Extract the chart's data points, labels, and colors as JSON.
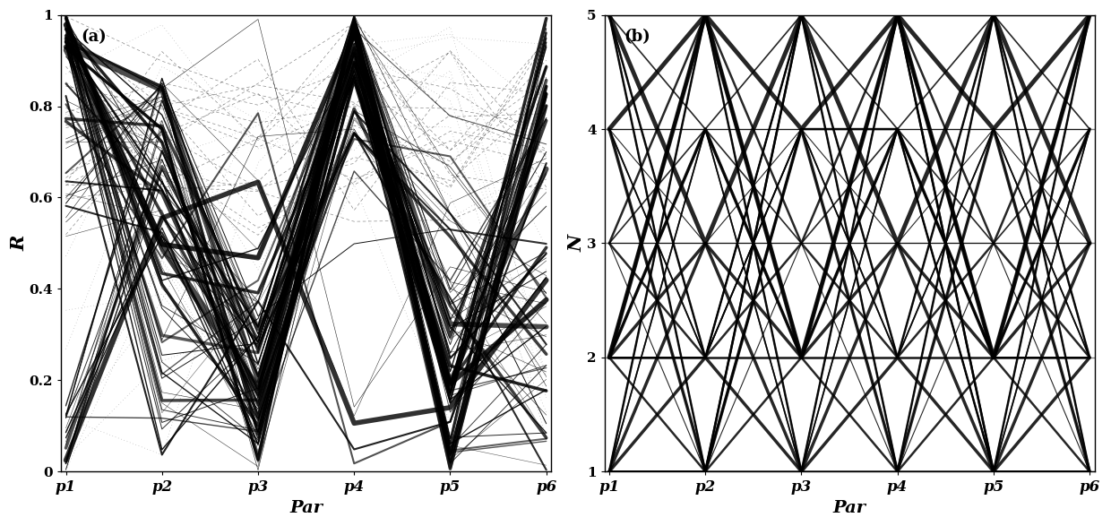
{
  "fig_width": 12.4,
  "fig_height": 5.87,
  "dpi": 100,
  "params": [
    "p1",
    "p2",
    "p3",
    "p4",
    "p5",
    "p6"
  ],
  "n_params": 6,
  "plot_a_ylim": [
    0,
    1
  ],
  "plot_a_yticks": [
    0,
    0.2,
    0.4,
    0.6,
    0.8,
    1
  ],
  "plot_a_ylabel": "R",
  "plot_a_xlabel": "Par",
  "plot_a_label": "(a)",
  "plot_b_ylim": [
    1,
    5
  ],
  "plot_b_yticks": [
    1,
    2,
    3,
    4,
    5
  ],
  "plot_b_ylabel": "N",
  "plot_b_xlabel": "Par",
  "plot_b_label": "(b)",
  "background_color": "#ffffff",
  "line_color": "#000000"
}
